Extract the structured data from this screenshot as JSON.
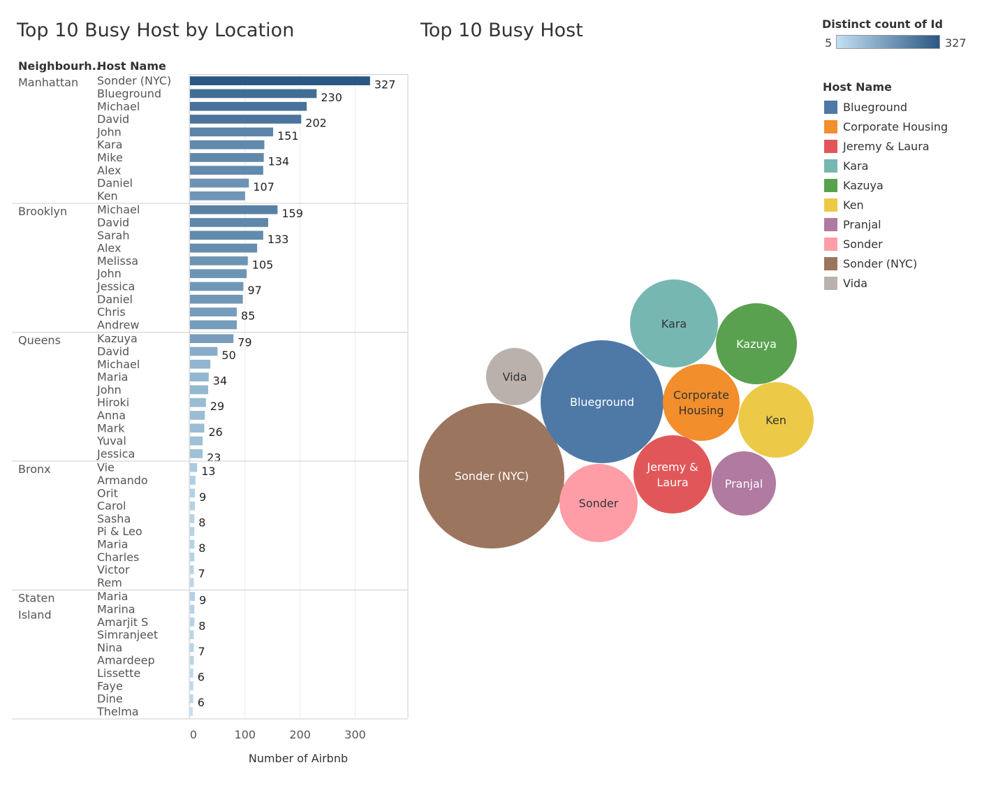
{
  "chart_data": [
    {
      "type": "bar",
      "title": "Top 10 Busy Host by Location",
      "row_headers": [
        "Neighbourh..",
        "Host Name"
      ],
      "xlabel": "Number of Airbnb",
      "xlim": [
        0,
        390
      ],
      "xticks": [
        "0",
        "100",
        "200",
        "300"
      ],
      "xtick_values": [
        0,
        100,
        200,
        300
      ],
      "groups": [
        {
          "name": "Manhattan",
          "rows": [
            {
              "host": "Sonder (NYC)",
              "value": 327,
              "label": "327"
            },
            {
              "host": "Blueground",
              "value": 230,
              "label": "230"
            },
            {
              "host": "Michael",
              "value": 212,
              "label": ""
            },
            {
              "host": "David",
              "value": 202,
              "label": "202"
            },
            {
              "host": "John",
              "value": 151,
              "label": "151"
            },
            {
              "host": "Kara",
              "value": 135,
              "label": ""
            },
            {
              "host": "Mike",
              "value": 134,
              "label": "134"
            },
            {
              "host": "Alex",
              "value": 133,
              "label": ""
            },
            {
              "host": "Daniel",
              "value": 107,
              "label": "107"
            },
            {
              "host": "Ken",
              "value": 100,
              "label": ""
            }
          ]
        },
        {
          "name": "Brooklyn",
          "rows": [
            {
              "host": "Michael",
              "value": 159,
              "label": "159"
            },
            {
              "host": "David",
              "value": 142,
              "label": ""
            },
            {
              "host": "Sarah",
              "value": 133,
              "label": "133"
            },
            {
              "host": "Alex",
              "value": 122,
              "label": ""
            },
            {
              "host": "Melissa",
              "value": 105,
              "label": "105"
            },
            {
              "host": "John",
              "value": 103,
              "label": ""
            },
            {
              "host": "Jessica",
              "value": 97,
              "label": "97"
            },
            {
              "host": "Daniel",
              "value": 96,
              "label": ""
            },
            {
              "host": "Chris",
              "value": 85,
              "label": "85"
            },
            {
              "host": "Andrew",
              "value": 85,
              "label": ""
            }
          ]
        },
        {
          "name": "Queens",
          "rows": [
            {
              "host": "Kazuya",
              "value": 79,
              "label": "79"
            },
            {
              "host": "David",
              "value": 50,
              "label": "50"
            },
            {
              "host": "Michael",
              "value": 37,
              "label": ""
            },
            {
              "host": "Maria",
              "value": 34,
              "label": "34"
            },
            {
              "host": "John",
              "value": 33,
              "label": ""
            },
            {
              "host": "Hiroki",
              "value": 29,
              "label": "29"
            },
            {
              "host": "Anna",
              "value": 27,
              "label": ""
            },
            {
              "host": "Mark",
              "value": 26,
              "label": "26"
            },
            {
              "host": "Yuval",
              "value": 23,
              "label": ""
            },
            {
              "host": "Jessica",
              "value": 23,
              "label": "23"
            }
          ]
        },
        {
          "name": "Bronx",
          "rows": [
            {
              "host": "Vie",
              "value": 13,
              "label": "13"
            },
            {
              "host": "Armando",
              "value": 10,
              "label": ""
            },
            {
              "host": "Orit",
              "value": 9,
              "label": "9"
            },
            {
              "host": "Carol",
              "value": 9,
              "label": ""
            },
            {
              "host": "Sasha",
              "value": 8,
              "label": "8"
            },
            {
              "host": "Pi & Leo",
              "value": 8,
              "label": ""
            },
            {
              "host": "Maria",
              "value": 8,
              "label": "8"
            },
            {
              "host": "Charles",
              "value": 8,
              "label": ""
            },
            {
              "host": "Victor",
              "value": 7,
              "label": "7"
            },
            {
              "host": "Rem",
              "value": 7,
              "label": ""
            }
          ]
        },
        {
          "name": "Staten Island",
          "name_lines": [
            "Staten",
            "Island"
          ],
          "rows": [
            {
              "host": "Maria",
              "value": 9,
              "label": "9"
            },
            {
              "host": "Marina",
              "value": 8,
              "label": ""
            },
            {
              "host": "Amarjit S",
              "value": 8,
              "label": "8"
            },
            {
              "host": "Simranjeet",
              "value": 7,
              "label": ""
            },
            {
              "host": "Nina",
              "value": 7,
              "label": "7"
            },
            {
              "host": "Amardeep",
              "value": 7,
              "label": ""
            },
            {
              "host": "Lissette",
              "value": 6,
              "label": "6"
            },
            {
              "host": "Faye",
              "value": 6,
              "label": ""
            },
            {
              "host": "Dine",
              "value": 6,
              "label": "6"
            },
            {
              "host": "Thelma",
              "value": 5,
              "label": ""
            }
          ]
        }
      ],
      "color_scale": {
        "title": "Distinct count of Id",
        "min": 5,
        "max": 327,
        "min_label": "5",
        "max_label": "327",
        "color_low": "#c2e0f2",
        "color_high": "#2a5783"
      }
    },
    {
      "type": "bubble",
      "title": "Top 10 Busy Host",
      "legend_title": "Host Name",
      "bubbles": [
        {
          "name": "Sonder (NYC)",
          "label_lines": [
            "Sonder (NYC)"
          ],
          "value": 327,
          "color": "#9c755f",
          "text_color": "#ffffff"
        },
        {
          "name": "Blueground",
          "label_lines": [
            "Blueground"
          ],
          "value": 230,
          "color": "#4e79a7",
          "text_color": "#ffffff"
        },
        {
          "name": "Kara",
          "label_lines": [
            "Kara"
          ],
          "value": 122,
          "color": "#76b7b2",
          "text_color": "#333333"
        },
        {
          "name": "Kazuya",
          "label_lines": [
            "Kazuya"
          ],
          "value": 103,
          "color": "#59a14f",
          "text_color": "#ffffff"
        },
        {
          "name": "Ken",
          "label_lines": [
            "Ken"
          ],
          "value": 86,
          "color": "#edc948",
          "text_color": "#333333"
        },
        {
          "name": "Corporate Housing",
          "label_lines": [
            "Corporate",
            "Housing"
          ],
          "value": 88,
          "color": "#f28e2b",
          "text_color": "#333333"
        },
        {
          "name": "Jeremy & Laura",
          "label_lines": [
            "Jeremy &",
            "Laura"
          ],
          "value": 92,
          "color": "#e15759",
          "text_color": "#ffffff"
        },
        {
          "name": "Sonder",
          "label_lines": [
            "Sonder"
          ],
          "value": 93,
          "color": "#ff9da7",
          "text_color": "#333333"
        },
        {
          "name": "Pranjal",
          "label_lines": [
            "Pranjal"
          ],
          "value": 65,
          "color": "#b07aa1",
          "text_color": "#ffffff"
        },
        {
          "name": "Vida",
          "label_lines": [
            "Vida"
          ],
          "value": 52,
          "color": "#bab0ac",
          "text_color": "#333333"
        }
      ],
      "legend": [
        {
          "name": "Blueground",
          "color": "#4e79a7"
        },
        {
          "name": "Corporate Housing",
          "color": "#f28e2b"
        },
        {
          "name": "Jeremy & Laura",
          "color": "#e15759"
        },
        {
          "name": "Kara",
          "color": "#76b7b2"
        },
        {
          "name": "Kazuya",
          "color": "#59a14f"
        },
        {
          "name": "Ken",
          "color": "#edc948"
        },
        {
          "name": "Pranjal",
          "color": "#b07aa1"
        },
        {
          "name": "Sonder",
          "color": "#ff9da7"
        },
        {
          "name": "Sonder (NYC)",
          "color": "#9c755f"
        },
        {
          "name": "Vida",
          "color": "#bab0ac"
        }
      ]
    }
  ]
}
